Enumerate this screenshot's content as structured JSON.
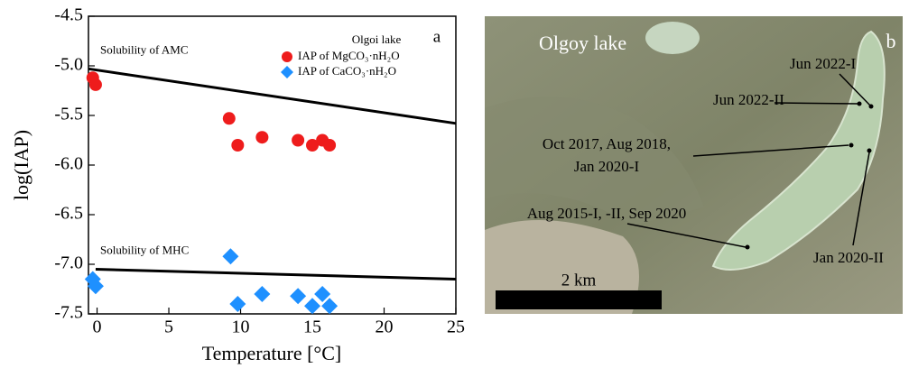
{
  "chart_data": {
    "type": "scatter",
    "panel": "a",
    "xlabel": "Temperature [°C]",
    "ylabel": "log(IAP)",
    "xlim": [
      -0.6,
      25
    ],
    "ylim": [
      -7.5,
      -4.5
    ],
    "xticks": [
      0,
      5,
      10,
      15,
      20,
      25
    ],
    "yticks": [
      -4.5,
      {
        "value": -5,
        "label": "-5.0"
      },
      -5.5,
      {
        "value": -6,
        "label": "-6.0"
      },
      -6.5,
      {
        "value": -7,
        "label": "-7.0"
      },
      -7.5
    ],
    "legend_title": "Olgoi lake",
    "legend": "upper right",
    "series": [
      {
        "name": "IAP of MgCO₃·nH₂O",
        "type": "scatter",
        "marker": "circle",
        "color": "#ee1c1c",
        "x": [
          -0.3,
          -0.1,
          9.2,
          9.8,
          11.5,
          14,
          15,
          15.7,
          16.2
        ],
        "values": [
          -5.12,
          -5.19,
          -5.53,
          -5.8,
          -5.72,
          -5.75,
          -5.8,
          -5.75,
          -5.8
        ]
      },
      {
        "name": "IAP of CaCO₃·nH₂O",
        "type": "scatter",
        "marker": "diamond",
        "color": "#1e90ff",
        "x": [
          -0.3,
          -0.1,
          9.3,
          9.8,
          11.5,
          14,
          15,
          15.7,
          16.2
        ],
        "values": [
          -7.15,
          -7.22,
          -6.92,
          -7.4,
          -7.3,
          -7.32,
          -7.42,
          -7.3,
          -7.42
        ]
      },
      {
        "name": "Solubility of AMC",
        "type": "line",
        "color": "#000000",
        "x": [
          -0.6,
          25
        ],
        "values": [
          -5.03,
          -5.58
        ]
      },
      {
        "name": "Solubility of MHC",
        "type": "line",
        "color": "#000000",
        "x": [
          -0.1,
          25
        ],
        "values": [
          -7.05,
          -7.15
        ]
      }
    ]
  },
  "map": {
    "title": "Olgoy lake",
    "panel": "b",
    "scale": "2 km",
    "sites": [
      {
        "lines": [
          "Jun 2022-I"
        ]
      },
      {
        "lines": [
          "Jun 2022-II"
        ]
      },
      {
        "lines": [
          "Oct 2017, Aug 2018,",
          "Jan 2020-I"
        ]
      },
      {
        "lines": [
          "Aug 2015-I, -II, Sep 2020"
        ]
      },
      {
        "lines": [
          "Jan 2020-II"
        ]
      }
    ]
  }
}
